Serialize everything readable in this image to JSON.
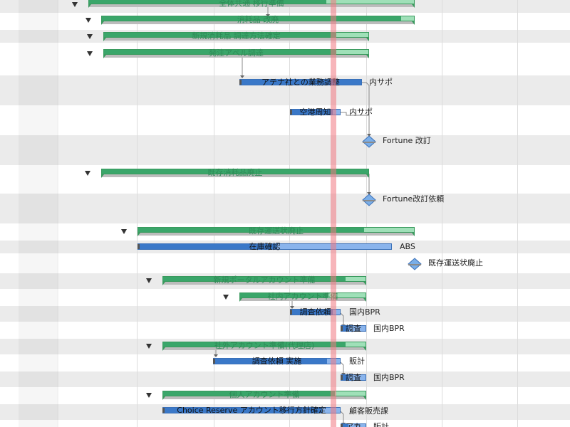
{
  "groups": [
    {
      "label": "全体共通 移行準備"
    },
    {
      "label": "消耗品 改廃"
    },
    {
      "label": "新規消耗品 調達方法確定"
    },
    {
      "label": "発注アベル調達"
    },
    {
      "label": "既存消耗品廃止"
    },
    {
      "label": "既存運送状廃止"
    },
    {
      "label": "新規ポータルアカウント準備"
    },
    {
      "label": "社内アカウント準備"
    },
    {
      "label": "社外アカウント準備(代理店)"
    },
    {
      "label": "個人アカウント準備"
    }
  ],
  "tasks": [
    {
      "label": "アテナ社との業務調整",
      "resource": "内サポ"
    },
    {
      "label": "空港周知",
      "resource": "内サポ"
    },
    {
      "label": "在庫確認",
      "resource": "ABS"
    },
    {
      "label": "調査依頼",
      "resource": "国内BPR"
    },
    {
      "label": "調査",
      "resource": "国内BPR"
    },
    {
      "label": "調査依頼 実施",
      "resource": "販計"
    },
    {
      "label": "調査",
      "resource": "国内BPR"
    },
    {
      "label": "Choice Reserve アカウント移行方針確定",
      "resource": "顧客販売課"
    },
    {
      "label": "アカ",
      "resource": "販計"
    }
  ],
  "milestones": [
    {
      "label": "Fortune 改訂"
    },
    {
      "label": "Fortune改訂依頼"
    },
    {
      "label": "既存運送状廃止"
    }
  ],
  "progress": {
    "groups": [
      0.73,
      0.96,
      0.88,
      0.88,
      1.0,
      0.82,
      0.9,
      0.7,
      0.9,
      0.85
    ],
    "tasks": [
      1.0,
      0.85,
      0.55,
      0.85,
      0.3,
      0.9,
      0.3,
      0.9,
      0.3
    ]
  },
  "colors": {
    "summary_fill": "#3aa66a",
    "summary_bg": "#9fe0b8",
    "task_fill": "#3a78c8",
    "task_bg": "#8ab4ec",
    "today_line": "#f07882",
    "alt_row": "#ebebeb"
  },
  "icons": {
    "collapse": "disclosure-triangle-down-icon",
    "milestone": "milestone-diamond-icon"
  }
}
